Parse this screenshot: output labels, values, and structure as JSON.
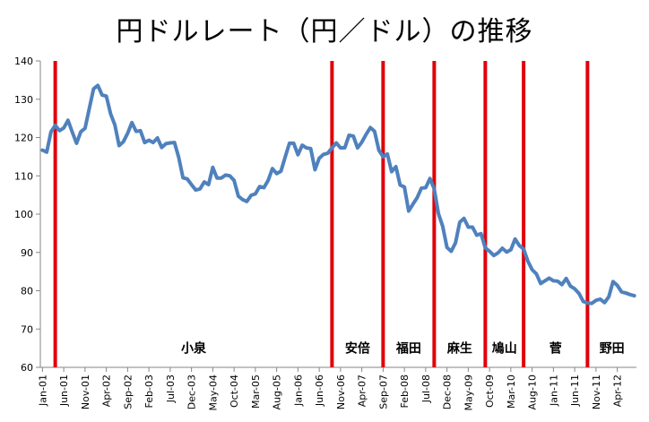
{
  "chart_data": {
    "type": "line",
    "title": "円ドルレート（円／ドル）の推移",
    "xlabel": "",
    "ylabel": "",
    "ylim": [
      60,
      140
    ],
    "yticks": [
      60,
      70,
      80,
      90,
      100,
      110,
      120,
      130,
      140
    ],
    "grid": false,
    "colors": {
      "line": "#4F81BD",
      "marker": "#E0000A",
      "axis": "#868686"
    },
    "x_tick_labels": [
      "Jan-01",
      "Jun-01",
      "Nov-01",
      "Apr-02",
      "Sep-02",
      "Feb-03",
      "Jul-03",
      "Dec-03",
      "May-04",
      "Oct-04",
      "Mar-05",
      "Aug-05",
      "Jan-06",
      "Jun-06",
      "Nov-06",
      "Apr-07",
      "Sep-07",
      "Feb-08",
      "Jul-08",
      "Dec-08",
      "May-09",
      "Oct-09",
      "Mar-10",
      "Aug-10",
      "Jan-11",
      "Jun-11",
      "Nov-11",
      "Apr-12"
    ],
    "x": [
      "2001-01",
      "2001-02",
      "2001-03",
      "2001-04",
      "2001-05",
      "2001-06",
      "2001-07",
      "2001-08",
      "2001-09",
      "2001-10",
      "2001-11",
      "2001-12",
      "2002-01",
      "2002-02",
      "2002-03",
      "2002-04",
      "2002-05",
      "2002-06",
      "2002-07",
      "2002-08",
      "2002-09",
      "2002-10",
      "2002-11",
      "2002-12",
      "2003-01",
      "2003-02",
      "2003-03",
      "2003-04",
      "2003-05",
      "2003-06",
      "2003-07",
      "2003-08",
      "2003-09",
      "2003-10",
      "2003-11",
      "2003-12",
      "2004-01",
      "2004-02",
      "2004-03",
      "2004-04",
      "2004-05",
      "2004-06",
      "2004-07",
      "2004-08",
      "2004-09",
      "2004-10",
      "2004-11",
      "2004-12",
      "2005-01",
      "2005-02",
      "2005-03",
      "2005-04",
      "2005-05",
      "2005-06",
      "2005-07",
      "2005-08",
      "2005-09",
      "2005-10",
      "2005-11",
      "2005-12",
      "2006-01",
      "2006-02",
      "2006-03",
      "2006-04",
      "2006-05",
      "2006-06",
      "2006-07",
      "2006-08",
      "2006-09",
      "2006-10",
      "2006-11",
      "2006-12",
      "2007-01",
      "2007-02",
      "2007-03",
      "2007-04",
      "2007-05",
      "2007-06",
      "2007-07",
      "2007-08",
      "2007-09",
      "2007-10",
      "2007-11",
      "2007-12",
      "2008-01",
      "2008-02",
      "2008-03",
      "2008-04",
      "2008-05",
      "2008-06",
      "2008-07",
      "2008-08",
      "2008-09",
      "2008-10",
      "2008-11",
      "2008-12",
      "2009-01",
      "2009-02",
      "2009-03",
      "2009-04",
      "2009-05",
      "2009-06",
      "2009-07",
      "2009-08",
      "2009-09",
      "2009-10",
      "2009-11",
      "2009-12",
      "2010-01",
      "2010-02",
      "2010-03",
      "2010-04",
      "2010-05",
      "2010-06",
      "2010-07",
      "2010-08",
      "2010-09",
      "2010-10",
      "2010-11",
      "2010-12",
      "2011-01",
      "2011-02",
      "2011-03",
      "2011-04",
      "2011-05",
      "2011-06",
      "2011-07",
      "2011-08",
      "2011-09",
      "2011-10",
      "2011-11",
      "2011-12",
      "2012-01",
      "2012-02",
      "2012-03",
      "2012-04",
      "2012-05",
      "2012-06",
      "2012-07",
      "2012-08"
    ],
    "series": [
      {
        "values": [
          116.7,
          116.2,
          121.5,
          123.2,
          121.8,
          122.5,
          124.5,
          121.4,
          118.5,
          121.5,
          122.4,
          127.6,
          132.7,
          133.6,
          131.1,
          130.8,
          126.2,
          123.3,
          117.9,
          118.9,
          121.1,
          123.9,
          121.6,
          121.8,
          118.7,
          119.3,
          118.7,
          119.9,
          117.4,
          118.4,
          118.6,
          118.7,
          114.8,
          109.5,
          109.2,
          107.7,
          106.3,
          106.6,
          108.4,
          107.7,
          112.2,
          109.4,
          109.4,
          110.2,
          110.0,
          108.8,
          104.7,
          103.8,
          103.3,
          104.9,
          105.3,
          107.2,
          106.9,
          108.8,
          111.9,
          110.6,
          111.2,
          114.9,
          118.5,
          118.5,
          115.5,
          118.0,
          117.3,
          117.1,
          111.6,
          114.6,
          115.6,
          115.9,
          117.3,
          118.6,
          117.3,
          117.3,
          120.6,
          120.4,
          117.3,
          118.8,
          120.8,
          122.6,
          121.6,
          116.7,
          115.0,
          115.7,
          111.1,
          112.4,
          107.6,
          107.1,
          100.8,
          102.6,
          104.3,
          106.8,
          106.9,
          109.3,
          106.6,
          100.1,
          96.8,
          91.3,
          90.3,
          92.5,
          97.9,
          98.9,
          96.6,
          96.6,
          94.5,
          94.9,
          91.2,
          90.3,
          89.2,
          89.9,
          91.1,
          90.1,
          90.7,
          93.5,
          91.8,
          90.9,
          87.7,
          85.5,
          84.4,
          81.9,
          82.6,
          83.3,
          82.6,
          82.5,
          81.6,
          83.2,
          81.2,
          80.5,
          79.3,
          77.2,
          76.8,
          76.7,
          77.5,
          77.8,
          76.9,
          78.4,
          82.4,
          81.4,
          79.7,
          79.4,
          79.0,
          78.7
        ]
      }
    ],
    "cabinet_markers": [
      {
        "date": "2001-04",
        "label": "小泉"
      },
      {
        "date": "2006-09",
        "label": "安倍"
      },
      {
        "date": "2007-09",
        "label": "福田"
      },
      {
        "date": "2008-09",
        "label": "麻生"
      },
      {
        "date": "2009-09",
        "label": "鳩山"
      },
      {
        "date": "2010-06",
        "label": "菅"
      },
      {
        "date": "2011-09",
        "label": "野田"
      }
    ]
  }
}
